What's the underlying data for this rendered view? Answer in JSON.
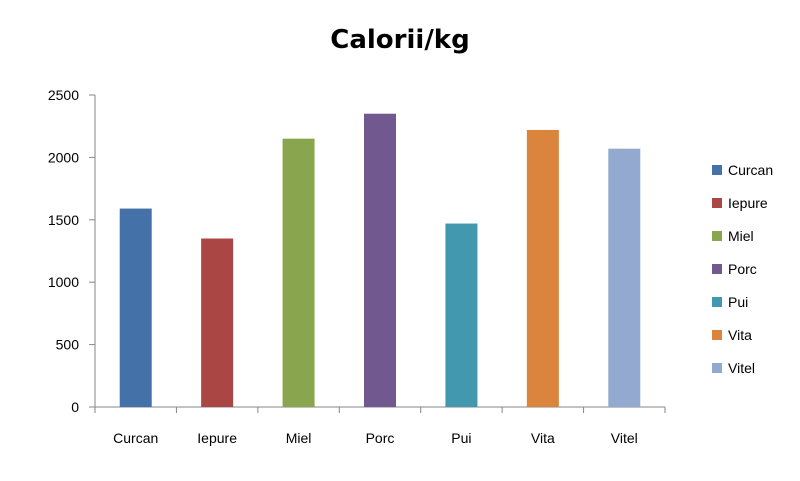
{
  "chart_data": {
    "type": "bar",
    "title": "Calorii/kg",
    "xlabel": "",
    "ylabel": "",
    "categories": [
      "Curcan",
      "Iepure",
      "Miel",
      "Porc",
      "Pui",
      "Vita",
      "Vitel"
    ],
    "values": [
      1590,
      1350,
      2150,
      2350,
      1470,
      2220,
      2070
    ],
    "colors": [
      "#4472A8",
      "#AA4644",
      "#89A54E",
      "#71588F",
      "#4298AF",
      "#DB843D",
      "#93A9CF"
    ],
    "ylim": [
      0,
      2500
    ],
    "yticks": [
      "0",
      "500",
      "1000",
      "1500",
      "2000",
      "2500"
    ],
    "grid": false,
    "legend": {
      "position": "right",
      "entries": [
        "Curcan",
        "Iepure",
        "Miel",
        "Porc",
        "Pui",
        "Vita",
        "Vitel"
      ]
    }
  }
}
